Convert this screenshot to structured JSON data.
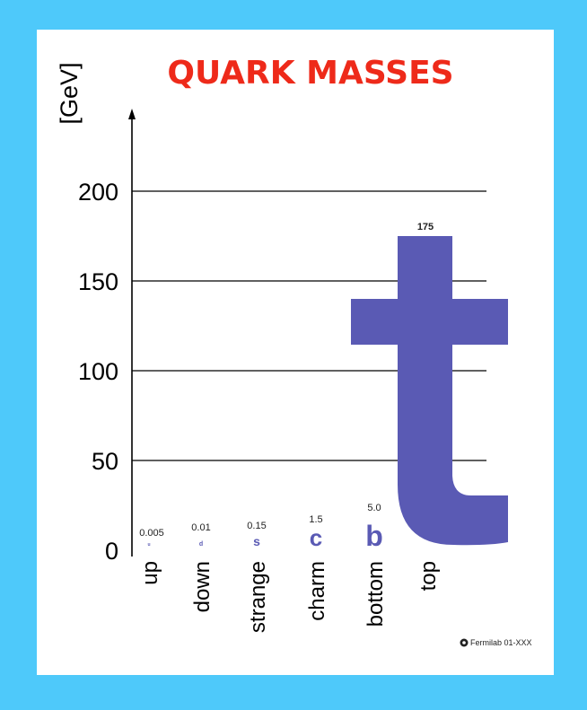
{
  "chart_data": {
    "type": "bar",
    "title": "QUARK MASSES",
    "ylabel": "[GeV]",
    "xlabel": "",
    "ylim": [
      0,
      235
    ],
    "yticks": [
      0,
      50,
      100,
      150,
      200
    ],
    "grid": true,
    "categories": [
      "up",
      "down",
      "strange",
      "charm",
      "bottom",
      "top"
    ],
    "symbols": [
      "u",
      "d",
      "s",
      "c",
      "b",
      "t"
    ],
    "value_labels": [
      "0.005",
      "0.01",
      "0.15",
      "1.5",
      "5.0",
      "175"
    ],
    "values": [
      0.005,
      0.01,
      0.15,
      1.5,
      5.0,
      175
    ],
    "credit": "Fermilab 01-XXX",
    "colors": {
      "title": "#ee2a1a",
      "glyph": "#5a5ab4",
      "grid": "#000000",
      "border": "#4ec9fa"
    }
  }
}
